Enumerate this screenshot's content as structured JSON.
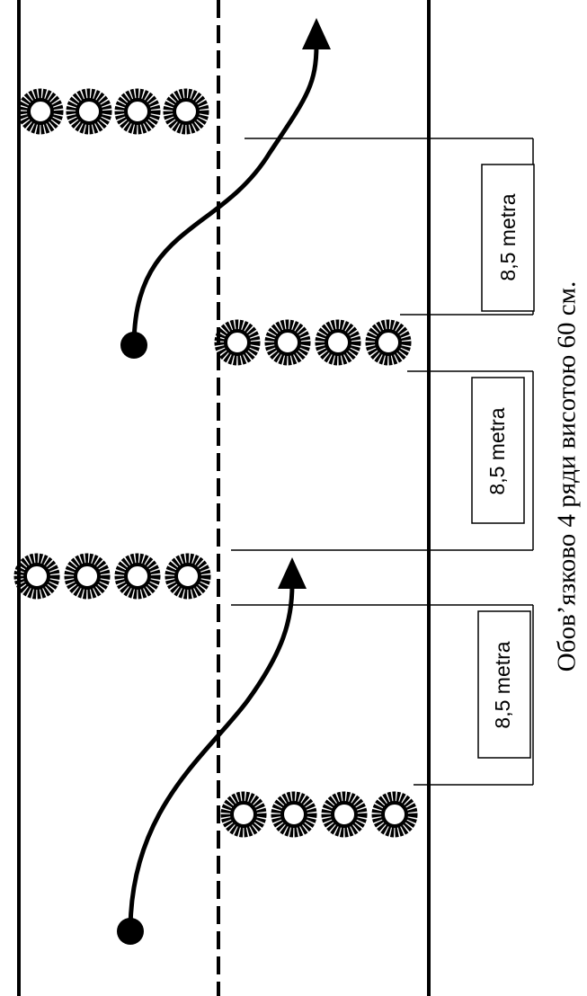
{
  "colors": {
    "ink": "#000000",
    "background": "#ffffff"
  },
  "diagram": {
    "road": {
      "outer_lines": "solid",
      "center_line": "dashed"
    },
    "tire_barriers": {
      "count": 4,
      "tires_per_row": 4,
      "arrangement": "staggered, alternating sides"
    },
    "paths": [
      {
        "icon": "start-dot-icon",
        "direction": "up",
        "marker": "arrow-up-icon"
      },
      {
        "icon": "start-dot-icon",
        "direction": "up",
        "marker": "arrow-up-icon"
      }
    ],
    "dimensions": [
      {
        "label": "8,5  metra"
      },
      {
        "label": "8,5  metra"
      },
      {
        "label": "8,5  metra"
      }
    ]
  },
  "caption": "Обов’язково 4 ряди висотою 60 см."
}
